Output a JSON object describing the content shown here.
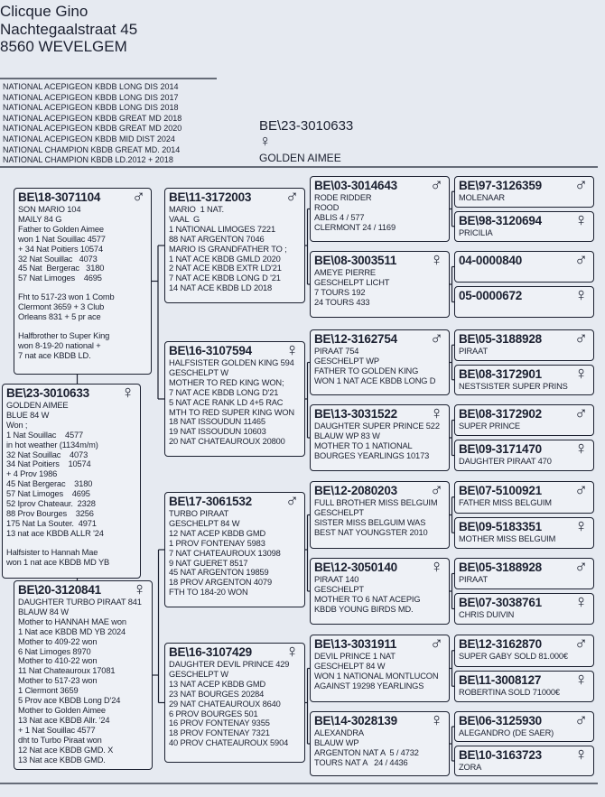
{
  "header": {
    "name": "Clicque Gino",
    "street": "Nachtegaalstraat 45",
    "city": "8560  WEVELGEM"
  },
  "titles": [
    "NATIONAL ACEPIGEON KBDB LONG DIS 2014",
    "NATIONAL ACEPIGEON KBDB LONG DIS 2017",
    "NATIONAL ACEPIGEON KBDB LONG DIS 2018",
    "NATIONAL ACEPIGEON KBDB GREAT MD 2018",
    "NATIONAL ACEPIGEON KBDB GREAT MD 2020",
    "NATIONAL ACEPIGEON KBDB MID DIST 2024",
    "NATIONAL CHAMPION KBDB GREAT MD. 2014",
    "NATIONAL CHAMPION KBDB LD.2012 + 2018"
  ],
  "main": {
    "ring": "BE\\23-3010633",
    "sex": "♀",
    "name": "GOLDEN AIMEE"
  },
  "boxes": [
    {
      "ring": "BE\\23-3010633",
      "sex": "♀",
      "paragraphs": [
        [
          "GOLDEN AIMEE",
          "BLUE 84 W",
          "Won ;",
          "1 Nat Souillac    4577",
          "in hot weather (1134m/m)",
          "32 Nat Souillac    4073",
          "34 Nat Poitiers    10574",
          "+ 4 Prov 1986",
          "45 Nat Bergerac    3180",
          "57 Nat Limoges    4695",
          "52 Iprov Chateaur.  2328",
          "88 Prov Bourges    3256",
          "175 Nat La Souter.  4971",
          "13 nat ace KBDB ALLR '24"
        ],
        [
          "Halfsister to Hannah Mae",
          "won 1 nat ace KBDB MD YB"
        ]
      ]
    },
    {
      "ring": "BE\\18-3071104",
      "sex": "♂",
      "paragraphs": [
        [
          "SON MARIO 104",
          "MAILY 84 G",
          "Father to Golden Aimee",
          "won 1 Nat Souillac 4577",
          "+ 34 Nat Poitiers 10574",
          "32 Nat Souillac   4073",
          "45 Nat  Bergerac   3180",
          "57 Nat Limoges    4695"
        ],
        [
          "Fht to 517-23 won 1 Comb",
          "Clermont 3659 + 3 Club",
          "Orleans 831 + 5 pr ace"
        ],
        [
          "Halfbrother to Super King",
          "won 8-19-20 national +",
          "7 nat ace KBDB LD."
        ]
      ]
    },
    {
      "ring": "BE\\20-3120841",
      "sex": "♀",
      "paragraphs": [
        [
          "DAUGHTER TURBO PIRAAT 841",
          "BLAUW 84 W",
          "Mother to HANNAH MAE won",
          "1 Nat ace KBDB MD YB 2024",
          "Mother to 409-22 won",
          "6 Nat Limoges 8970",
          "Mother to 410-22 won",
          "11 Nat Chateauroux 17081",
          "Mother to 517-23 won",
          "1 Clermont 3659",
          "5 Prov ace KBDB Long D'24",
          "Mother to Golden Aimee",
          "13 Nat ace KBDB Allr. '24",
          "+ 1 Nat Souillac 4577",
          "dht to Turbo Piraat won",
          "12 Nat ace KBDB GMD. X",
          "13 Nat ace KBDB GMD."
        ]
      ]
    },
    {
      "ring": "BE\\11-3172003",
      "sex": "♂",
      "paragraphs": [
        [
          "MARIO  1 NAT.",
          "VAAL  G",
          "1 NATIONAL LIMOGES 7221",
          "88 NAT ARGENTON 7046",
          "MARIO IS GRANDFATHER TO ;",
          "1 NAT ACE KBDB GMLD 2020",
          "2 NAT ACE KBDB EXTR LD'21",
          "7 NAT ACE KBDB LONG D '21",
          "14 NAT ACE KBDB LD 2018"
        ]
      ]
    },
    {
      "ring": "BE\\16-3107594",
      "sex": "♀",
      "paragraphs": [
        [
          "HALFSISTER GOLDEN KING 594",
          "GESCHELPT W",
          "MOTHER TO RED KING WON;",
          "7 NAT ACE KBDB LONG D'21",
          "5 NAT ACE RANK LD 4+5 RAC",
          "MTH TO RED SUPER KING WON",
          "18 NAT ISSOUDUN 11465",
          "19 NAT ISSOUDUN 10603",
          "20 NAT CHATEAUROUX 20800"
        ]
      ]
    },
    {
      "ring": "BE\\17-3061532",
      "sex": "♂",
      "paragraphs": [
        [
          "TURBO PIRAAT",
          "GESCHELPT 84 W",
          "12 NAT ACEP KBDB GMD",
          "1 PROV FONTENAY 5983",
          "7 NAT CHATEAUROUX 13098",
          "9 NAT GUERET 8517",
          "45 NAT ARGENTON 19859",
          "18 PROV ARGENTON 4079",
          "FTH TO 184-20 WON"
        ]
      ]
    },
    {
      "ring": "BE\\16-3107429",
      "sex": "♀",
      "paragraphs": [
        [
          "DAUGHTER DEVIL PRINCE 429",
          "GESCHELPT W",
          "13 NAT ACEP KBDB GMD",
          "23 NAT BOURGES 20284",
          "29 NAT CHATEAUROUX 8640",
          "6 PROV BOURGES 501",
          "16 PROV FONTENAY 9355",
          "18 PROV FONTENAY 7321",
          "40 PROV CHATEAUROUX 5904"
        ]
      ]
    },
    {
      "ring": "BE\\03-3014643",
      "sex": "♂",
      "paragraphs": [
        [
          "RODE RIDDER",
          "ROOD",
          "ABLIS 4 / 577",
          "CLERMONT 24 / 1169"
        ]
      ]
    },
    {
      "ring": "BE\\08-3003511",
      "sex": "♀",
      "paragraphs": [
        [
          "AMEYE PIERRE",
          "GESCHELPT LICHT",
          "7 TOURS 192",
          "24 TOURS 433"
        ]
      ]
    },
    {
      "ring": "BE\\12-3162754",
      "sex": "♂",
      "paragraphs": [
        [
          "PIRAAT 754",
          "GESCHELPT WP",
          "FATHER TO GOLDEN KING",
          "WON 1 NAT ACE KBDB LONG D"
        ]
      ]
    },
    {
      "ring": "BE\\13-3031522",
      "sex": "♀",
      "paragraphs": [
        [
          "DAUGHTER SUPER PRINCE 522",
          "BLAUW WP 83 W",
          "MOTHER TO 1 NATIONAL",
          "BOURGES YEARLINGS 10173"
        ]
      ]
    },
    {
      "ring": "BE\\12-2080203",
      "sex": "♂",
      "paragraphs": [
        [
          "FULL BROTHER MISS BELGUIM",
          "GESCHELPT",
          "SISTER MISS BELGUIM WAS",
          "BEST NAT YOUNGSTER 2010"
        ]
      ]
    },
    {
      "ring": "BE\\12-3050140",
      "sex": "♀",
      "paragraphs": [
        [
          "PIRAAT 140",
          "GESCHELPT",
          "MOTHER TO 6 NAT ACEPIG",
          "KBDB YOUNG BIRDS MD."
        ]
      ]
    },
    {
      "ring": "BE\\13-3031911",
      "sex": "♂",
      "paragraphs": [
        [
          "DEVIL PRINCE 1 NAT",
          "GESCHELPT 84 W",
          "WON 1 NATIONAL MONTLUCON",
          "AGAINST 19298 YEARLINGS"
        ]
      ]
    },
    {
      "ring": "BE\\14-3028139",
      "sex": "♀",
      "paragraphs": [
        [
          "ALEXANDRA",
          "BLAUW WP",
          "ARGENTON NAT A  5 / 4732",
          "TOURS NAT A   24 / 4436"
        ]
      ]
    },
    {
      "ring": "BE\\97-3126359",
      "sex": "♂",
      "paragraphs": [
        [
          "MOLENAAR"
        ]
      ]
    },
    {
      "ring": "BE\\98-3120694",
      "sex": "♀",
      "paragraphs": [
        [
          "PRICILIA"
        ]
      ]
    },
    {
      "ring": "04-0000840",
      "sex": "♂",
      "paragraphs": []
    },
    {
      "ring": "05-0000672",
      "sex": "♀",
      "paragraphs": []
    },
    {
      "ring": "BE\\05-3188928",
      "sex": "♂",
      "paragraphs": [
        [
          "PIRAAT"
        ]
      ]
    },
    {
      "ring": "BE\\08-3172901",
      "sex": "♀",
      "paragraphs": [
        [
          "NESTSISTER SUPER PRINS"
        ]
      ]
    },
    {
      "ring": "BE\\08-3172902",
      "sex": "♂",
      "paragraphs": [
        [
          "SUPER PRINCE"
        ]
      ]
    },
    {
      "ring": "BE\\09-3171470",
      "sex": "♀",
      "paragraphs": [
        [
          "DAUGHTER PIRAAT 470"
        ]
      ]
    },
    {
      "ring": "BE\\07-5100921",
      "sex": "♂",
      "paragraphs": [
        [
          "FATHER MISS BELGUIM"
        ]
      ]
    },
    {
      "ring": "BE\\09-5183351",
      "sex": "♀",
      "paragraphs": [
        [
          "MOTHER MISS BELGUIM"
        ]
      ]
    },
    {
      "ring": "BE\\05-3188928",
      "sex": "♂",
      "paragraphs": [
        [
          "PIRAAT"
        ]
      ]
    },
    {
      "ring": "BE\\07-3038761",
      "sex": "♀",
      "paragraphs": [
        [
          "CHRIS DUIVIN"
        ]
      ]
    },
    {
      "ring": "BE\\12-3162870",
      "sex": "♂",
      "paragraphs": [
        [
          "SUPER GABY SOLD 81.000€"
        ]
      ]
    },
    {
      "ring": "BE\\11-3008127",
      "sex": "♀",
      "paragraphs": [
        [
          "ROBERTINA SOLD 71000€"
        ]
      ]
    },
    {
      "ring": "BE\\06-3125930",
      "sex": "♂",
      "paragraphs": [
        [
          "ALEGANDRO (DE SAER)"
        ]
      ]
    },
    {
      "ring": "BE\\10-3163723",
      "sex": "♀",
      "paragraphs": [
        [
          "ZORA"
        ]
      ]
    }
  ]
}
